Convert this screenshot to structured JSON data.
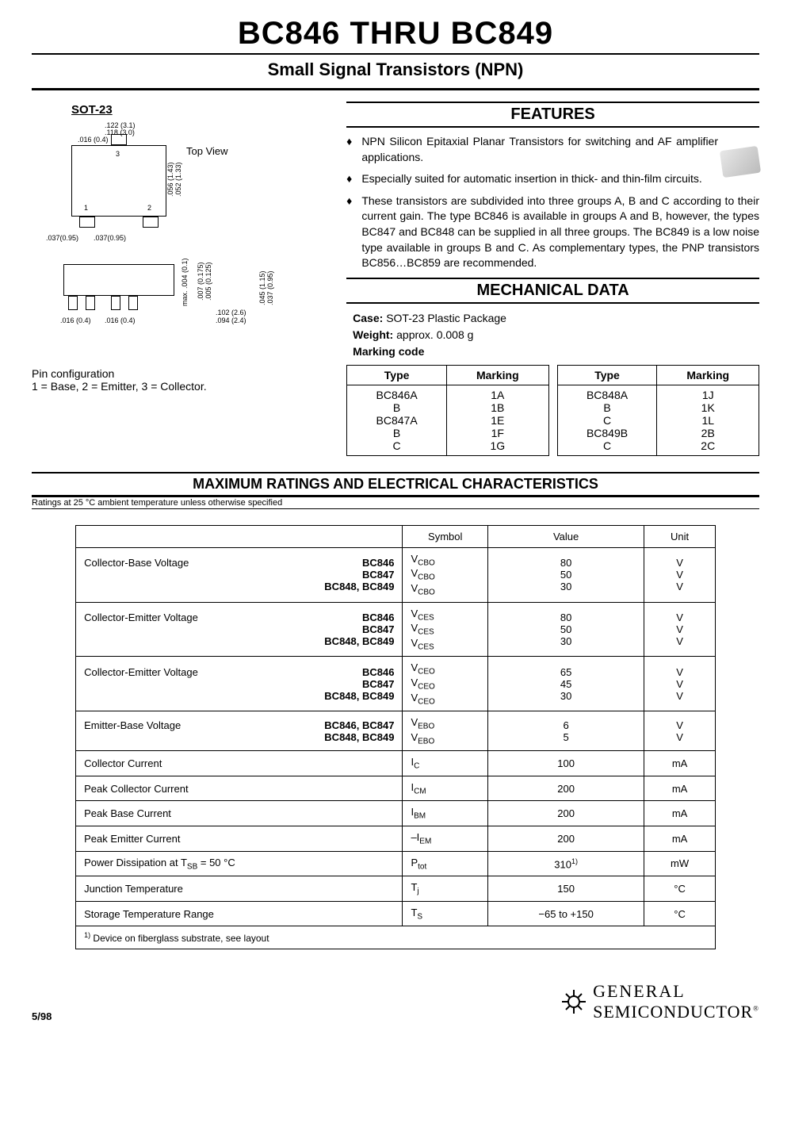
{
  "title": "BC846 THRU BC849",
  "subtitle": "Small Signal Transistors (NPN)",
  "sot_label": "SOT-23",
  "top_view": "Top View",
  "pin_config_line1": "Pin configuration",
  "pin_config_line2": "1 = Base, 2 = Emitter, 3 = Collector.",
  "features_head": "FEATURES",
  "features": [
    "NPN Silicon Epitaxial Planar Transistors for switching and AF amplifier applications.",
    "Especially suited for automatic insertion in thick- and thin-film circuits.",
    "These transistors are subdivided into three groups A, B and C according to their current gain. The type BC846 is available in groups A and B, however, the types BC847 and BC848 can be supplied in all three groups. The BC849 is a low noise type available in groups B and C. As complementary types, the PNP transistors BC856…BC859 are recommended."
  ],
  "mech_head": "MECHANICAL DATA",
  "mech_case_label": "Case:",
  "mech_case": "SOT-23 Plastic Package",
  "mech_weight_label": "Weight:",
  "mech_weight": "approx. 0.008 g",
  "mech_marking_label": "Marking code",
  "marking_header_type": "Type",
  "marking_header_marking": "Marking",
  "marking_left": {
    "types": "BC846A\nB\nBC847A\nB\nC",
    "marks": "1A\n1B\n1E\n1F\n1G"
  },
  "marking_right": {
    "types": "BC848A\nB\nC\nBC849B\nC",
    "marks": "1J\n1K\n1L\n2B\n2C"
  },
  "ratings_head": "MAXIMUM RATINGS AND ELECTRICAL CHARACTERISTICS",
  "ratings_sub": "Ratings at 25 °C ambient temperature unless otherwise specified",
  "ratings_cols": {
    "symbol": "Symbol",
    "value": "Value",
    "unit": "Unit"
  },
  "ratings": [
    {
      "param": "Collector-Base Voltage",
      "types": "BC846\nBC847\nBC848, BC849",
      "symbol": "V<sub>CBO</sub>\nV<sub>CBO</sub>\nV<sub>CBO</sub>",
      "value": "80\n50\n30",
      "unit": "V\nV\nV"
    },
    {
      "param": "Collector-Emitter Voltage",
      "types": "BC846\nBC847\nBC848, BC849",
      "symbol": "V<sub>CES</sub>\nV<sub>CES</sub>\nV<sub>CES</sub>",
      "value": "80\n50\n30",
      "unit": "V\nV\nV"
    },
    {
      "param": "Collector-Emitter Voltage",
      "types": "BC846\nBC847\nBC848, BC849",
      "symbol": "V<sub>CEO</sub>\nV<sub>CEO</sub>\nV<sub>CEO</sub>",
      "value": "65\n45\n30",
      "unit": "V\nV\nV"
    },
    {
      "param": "Emitter-Base Voltage",
      "types": "BC846, BC847\nBC848, BC849",
      "symbol": "V<sub>EBO</sub>\nV<sub>EBO</sub>",
      "value": "6\n5",
      "unit": "V\nV"
    },
    {
      "param": "Collector Current",
      "types": "",
      "symbol": "I<sub>C</sub>",
      "value": "100",
      "unit": "mA"
    },
    {
      "param": "Peak Collector Current",
      "types": "",
      "symbol": "I<sub>CM</sub>",
      "value": "200",
      "unit": "mA"
    },
    {
      "param": "Peak Base Current",
      "types": "",
      "symbol": "I<sub>BM</sub>",
      "value": "200",
      "unit": "mA"
    },
    {
      "param": "Peak Emitter Current",
      "types": "",
      "symbol": "–I<sub>EM</sub>",
      "value": "200",
      "unit": "mA"
    },
    {
      "param": "Power Dissipation at T<sub>SB</sub> = 50 °C",
      "types": "",
      "symbol": "P<sub>tot</sub>",
      "value": "310<sup>1)</sup>",
      "unit": "mW"
    },
    {
      "param": "Junction Temperature",
      "types": "",
      "symbol": "T<sub>j</sub>",
      "value": "150",
      "unit": "°C"
    },
    {
      "param": "Storage Temperature Range",
      "types": "",
      "symbol": "T<sub>S</sub>",
      "value": "−65 to +150",
      "unit": "°C"
    }
  ],
  "footnote": "<sup>1)</sup> Device on fiberglass substrate, see layout",
  "page_date": "5/98",
  "logo_top": "GENERAL",
  "logo_bottom": "SEMICONDUCTOR",
  "logo_reg": "®",
  "diagram_dims": {
    "d1": ".122 (3.1)",
    "d2": ".118 (3.0)",
    "d3": ".016 (0.4)",
    "d4": ".056 (1.43)",
    "d5": ".052 (1.33)",
    "d6": ".037(0.95)",
    "d7": ".037(0.95)",
    "d8": "max. .004 (0.1)",
    "d9": ".007 (0.175)",
    "d10": ".005 (0.125)",
    "d11": ".045 (1.15)",
    "d12": ".037 (0.95)",
    "d13": ".102 (2.6)",
    "d14": ".094 (2.4)",
    "d15": ".016 (0.4)",
    "d16": ".016 (0.4)",
    "p1": "1",
    "p2": "2",
    "p3": "3"
  }
}
